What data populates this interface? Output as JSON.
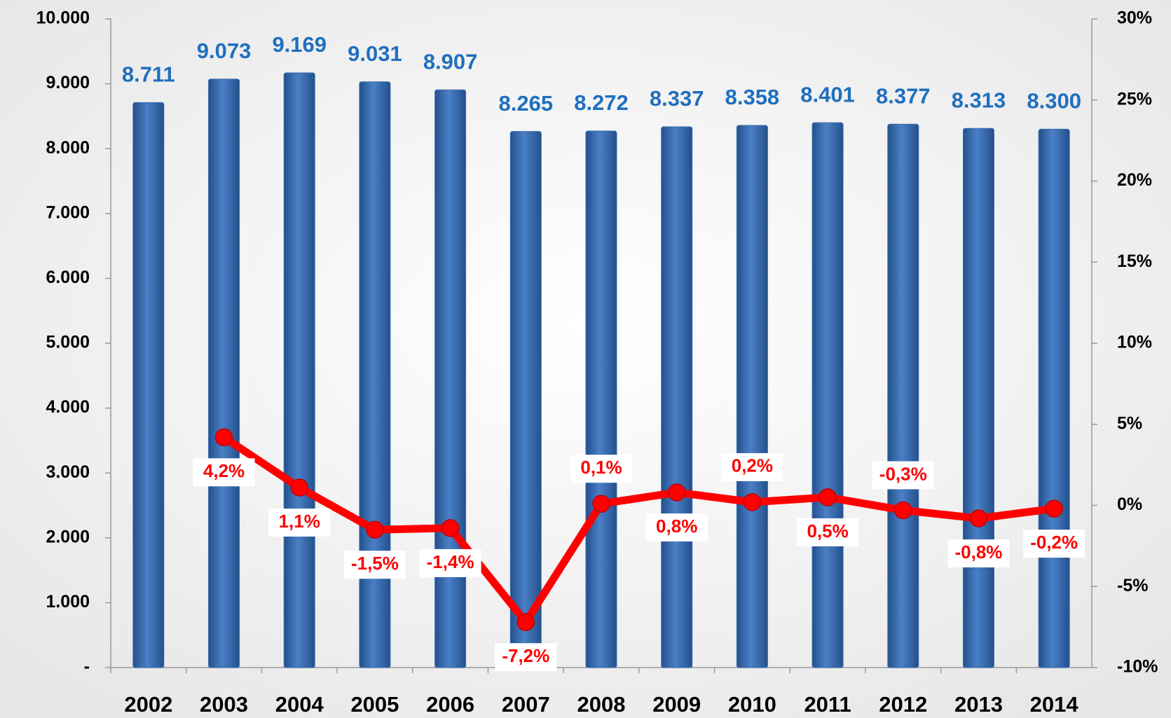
{
  "chart_data": {
    "type": "bar",
    "categories": [
      "2002",
      "2003",
      "2004",
      "2005",
      "2006",
      "2007",
      "2008",
      "2009",
      "2010",
      "2011",
      "2012",
      "2013",
      "2014"
    ],
    "series": [
      {
        "type": "bar",
        "color": "#3a6db0",
        "values": [
          8711,
          9073,
          9169,
          9031,
          8907,
          8265,
          8272,
          8337,
          8358,
          8401,
          8377,
          8313,
          8300
        ],
        "value_labels": [
          "8.711",
          "9.073",
          "9.169",
          "9.031",
          "8.907",
          "8.265",
          "8.272",
          "8.337",
          "8.358",
          "8.401",
          "8.377",
          "8.313",
          "8.300"
        ],
        "label_color": "#1f6fbf"
      },
      {
        "type": "line",
        "axis": "y2",
        "color": "#ff0000",
        "values": [
          null,
          4.2,
          1.1,
          -1.5,
          -1.4,
          -7.2,
          0.1,
          0.8,
          0.2,
          0.5,
          -0.3,
          -0.8,
          -0.2
        ],
        "value_labels": [
          null,
          "4,2%",
          "1,1%",
          "-1,5%",
          "-1,4%",
          "-7,2%",
          "0,1%",
          "0,8%",
          "0,2%",
          "0,5%",
          "-0,3%",
          "-0,8%",
          "-0,2%"
        ]
      }
    ],
    "ylim": [
      0,
      10000
    ],
    "yticks": [
      {
        "value": 0,
        "label": "-"
      },
      {
        "value": 1000,
        "label": "1.000"
      },
      {
        "value": 2000,
        "label": "2.000"
      },
      {
        "value": 3000,
        "label": "3.000"
      },
      {
        "value": 4000,
        "label": "4.000"
      },
      {
        "value": 5000,
        "label": "5.000"
      },
      {
        "value": 6000,
        "label": "6.000"
      },
      {
        "value": 7000,
        "label": "7.000"
      },
      {
        "value": 8000,
        "label": "8.000"
      },
      {
        "value": 9000,
        "label": "9.000"
      },
      {
        "value": 10000,
        "label": "10.000"
      }
    ],
    "y2lim": [
      -10,
      30
    ],
    "y2ticks": [
      {
        "value": -10,
        "label": "-10%"
      },
      {
        "value": -5,
        "label": "-5%"
      },
      {
        "value": 0,
        "label": "0%"
      },
      {
        "value": 5,
        "label": "5%"
      },
      {
        "value": 10,
        "label": "10%"
      },
      {
        "value": 15,
        "label": "15%"
      },
      {
        "value": 20,
        "label": "20%"
      },
      {
        "value": 25,
        "label": "25%"
      },
      {
        "value": 30,
        "label": "30%"
      }
    ],
    "grid": false
  }
}
